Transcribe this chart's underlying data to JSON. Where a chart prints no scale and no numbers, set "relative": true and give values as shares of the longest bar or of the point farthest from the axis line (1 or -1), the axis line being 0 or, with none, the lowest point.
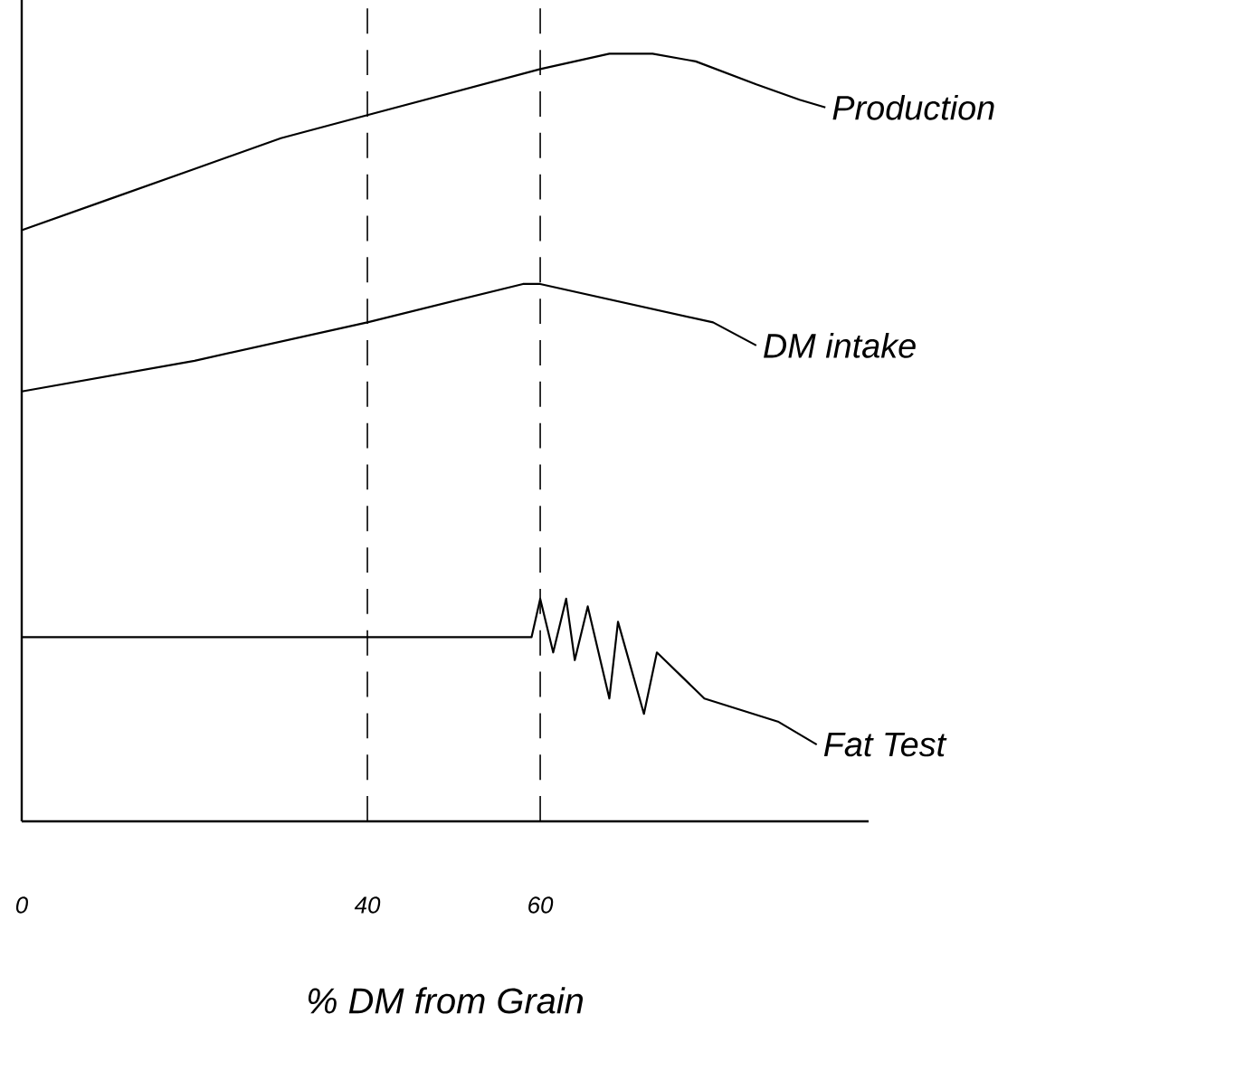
{
  "chart_data": {
    "type": "line",
    "relative": true,
    "xlabel": "% DM from Grain",
    "xlim": [
      0,
      98
    ],
    "xticks": [
      0,
      40,
      60
    ],
    "tick_labels": "x",
    "marker": "none",
    "line_style": "solid",
    "ref_lines": [
      {
        "axis": "x",
        "value": 40,
        "line_style": "dashed"
      },
      {
        "axis": "x",
        "value": 60,
        "line_style": "dashed"
      }
    ],
    "series": [
      {
        "name": "Production",
        "color": "#000000",
        "x": [
          0,
          10,
          20,
          30,
          40,
          50,
          60,
          68,
          73,
          78,
          85,
          90,
          93
        ],
        "values": [
          0.77,
          0.81,
          0.85,
          0.89,
          0.92,
          0.95,
          0.98,
          1.0,
          1.0,
          0.99,
          0.96,
          0.94,
          0.93
        ]
      },
      {
        "name": "DM intake",
        "color": "#000000",
        "x": [
          0,
          20,
          40,
          58,
          60,
          80,
          85
        ],
        "values": [
          0.56,
          0.6,
          0.65,
          0.7,
          0.7,
          0.65,
          0.62
        ]
      },
      {
        "name": "Fat Test",
        "color": "#000000",
        "x": [
          0,
          59,
          60,
          61.5,
          63,
          64,
          65.5,
          68,
          69,
          72,
          73.5,
          79,
          87.5,
          92
        ],
        "values": [
          0.24,
          0.24,
          0.29,
          0.22,
          0.29,
          0.21,
          0.28,
          0.16,
          0.26,
          0.14,
          0.22,
          0.16,
          0.13,
          0.1
        ]
      }
    ]
  }
}
